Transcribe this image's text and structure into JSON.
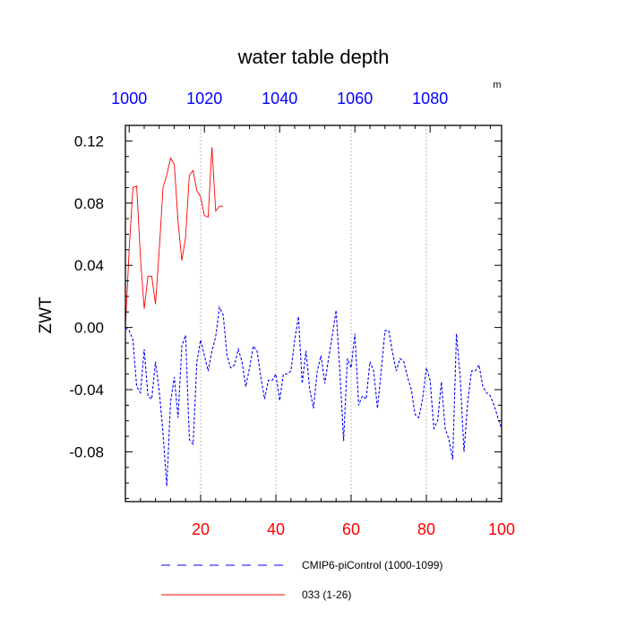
{
  "chart_data": {
    "type": "line",
    "title": "water table depth",
    "ylabel": "ZWT",
    "unit": "m",
    "x": {
      "range": [
        0,
        100
      ],
      "ticks": [
        20,
        40,
        60,
        80,
        100
      ],
      "tick_color": "#ff0000"
    },
    "x_top": {
      "range": [
        999,
        1099
      ],
      "ticks": [
        1000,
        1020,
        1040,
        1060,
        1080
      ],
      "tick_color": "#0000ff"
    },
    "y": {
      "range": [
        -0.112,
        0.13
      ],
      "ticks": [
        0.12,
        0.08,
        0.04,
        0.0,
        -0.04,
        -0.08
      ],
      "tick_labels": [
        "0.12",
        "0.08",
        "0.04",
        "0.00",
        "-0.04",
        "-0.08"
      ]
    },
    "grid": "vertical dashed at x ticks",
    "series": [
      {
        "name": "CMIP6-piControl (1000-1099)",
        "color": "#0000ff",
        "dash": "dashed",
        "x": [
          0,
          1,
          2,
          3,
          4,
          5,
          6,
          7,
          8,
          9,
          10,
          11,
          12,
          13,
          14,
          15,
          16,
          17,
          18,
          19,
          20,
          21,
          22,
          23,
          24,
          25,
          26,
          27,
          28,
          29,
          30,
          31,
          32,
          33,
          34,
          35,
          36,
          37,
          38,
          39,
          40,
          41,
          42,
          43,
          44,
          45,
          46,
          47,
          48,
          49,
          50,
          51,
          52,
          53,
          54,
          55,
          56,
          57,
          58,
          59,
          60,
          61,
          62,
          63,
          64,
          65,
          66,
          67,
          68,
          69,
          70,
          71,
          72,
          73,
          74,
          75,
          76,
          77,
          78,
          79,
          80,
          81,
          82,
          83,
          84,
          85,
          86,
          87,
          88,
          89,
          90,
          91,
          92,
          93,
          94,
          95,
          96,
          97,
          98,
          99,
          100
        ],
        "y": [
          0.0,
          -0.002,
          -0.008,
          -0.038,
          -0.042,
          -0.014,
          -0.044,
          -0.046,
          -0.022,
          -0.041,
          -0.068,
          -0.102,
          -0.048,
          -0.032,
          -0.058,
          -0.012,
          -0.005,
          -0.072,
          -0.075,
          -0.022,
          -0.008,
          -0.018,
          -0.028,
          -0.015,
          -0.006,
          0.013,
          0.008,
          -0.018,
          -0.026,
          -0.024,
          -0.014,
          -0.022,
          -0.038,
          -0.026,
          -0.012,
          -0.015,
          -0.032,
          -0.046,
          -0.034,
          -0.034,
          -0.03,
          -0.047,
          -0.03,
          -0.03,
          -0.028,
          -0.008,
          0.007,
          -0.036,
          -0.015,
          -0.04,
          -0.052,
          -0.028,
          -0.018,
          -0.036,
          -0.02,
          -0.005,
          0.011,
          -0.028,
          -0.073,
          -0.02,
          -0.026,
          -0.004,
          -0.05,
          -0.044,
          -0.046,
          -0.022,
          -0.028,
          -0.052,
          -0.028,
          -0.002,
          -0.002,
          -0.016,
          -0.028,
          -0.02,
          -0.022,
          -0.032,
          -0.04,
          -0.056,
          -0.058,
          -0.046,
          -0.026,
          -0.034,
          -0.065,
          -0.06,
          -0.035,
          -0.065,
          -0.072,
          -0.085,
          -0.004,
          -0.032,
          -0.08,
          -0.048,
          -0.028,
          -0.028,
          -0.024,
          -0.038,
          -0.042,
          -0.044,
          -0.05,
          -0.058,
          -0.065
        ]
      },
      {
        "name": "033 (1-26)",
        "color": "#ff0000",
        "dash": "solid",
        "x": [
          0,
          1,
          2,
          3,
          4,
          5,
          6,
          7,
          8,
          9,
          10,
          11,
          12,
          13,
          14,
          15,
          16,
          17,
          18,
          19,
          20,
          21,
          22,
          23,
          24,
          25,
          26
        ],
        "y": [
          0.0,
          0.05,
          0.09,
          0.091,
          0.045,
          0.012,
          0.033,
          0.033,
          0.015,
          0.05,
          0.09,
          0.098,
          0.109,
          0.105,
          0.068,
          0.043,
          0.058,
          0.098,
          0.101,
          0.088,
          0.084,
          0.072,
          0.071,
          0.116,
          0.075,
          0.078,
          0.078
        ]
      }
    ]
  }
}
